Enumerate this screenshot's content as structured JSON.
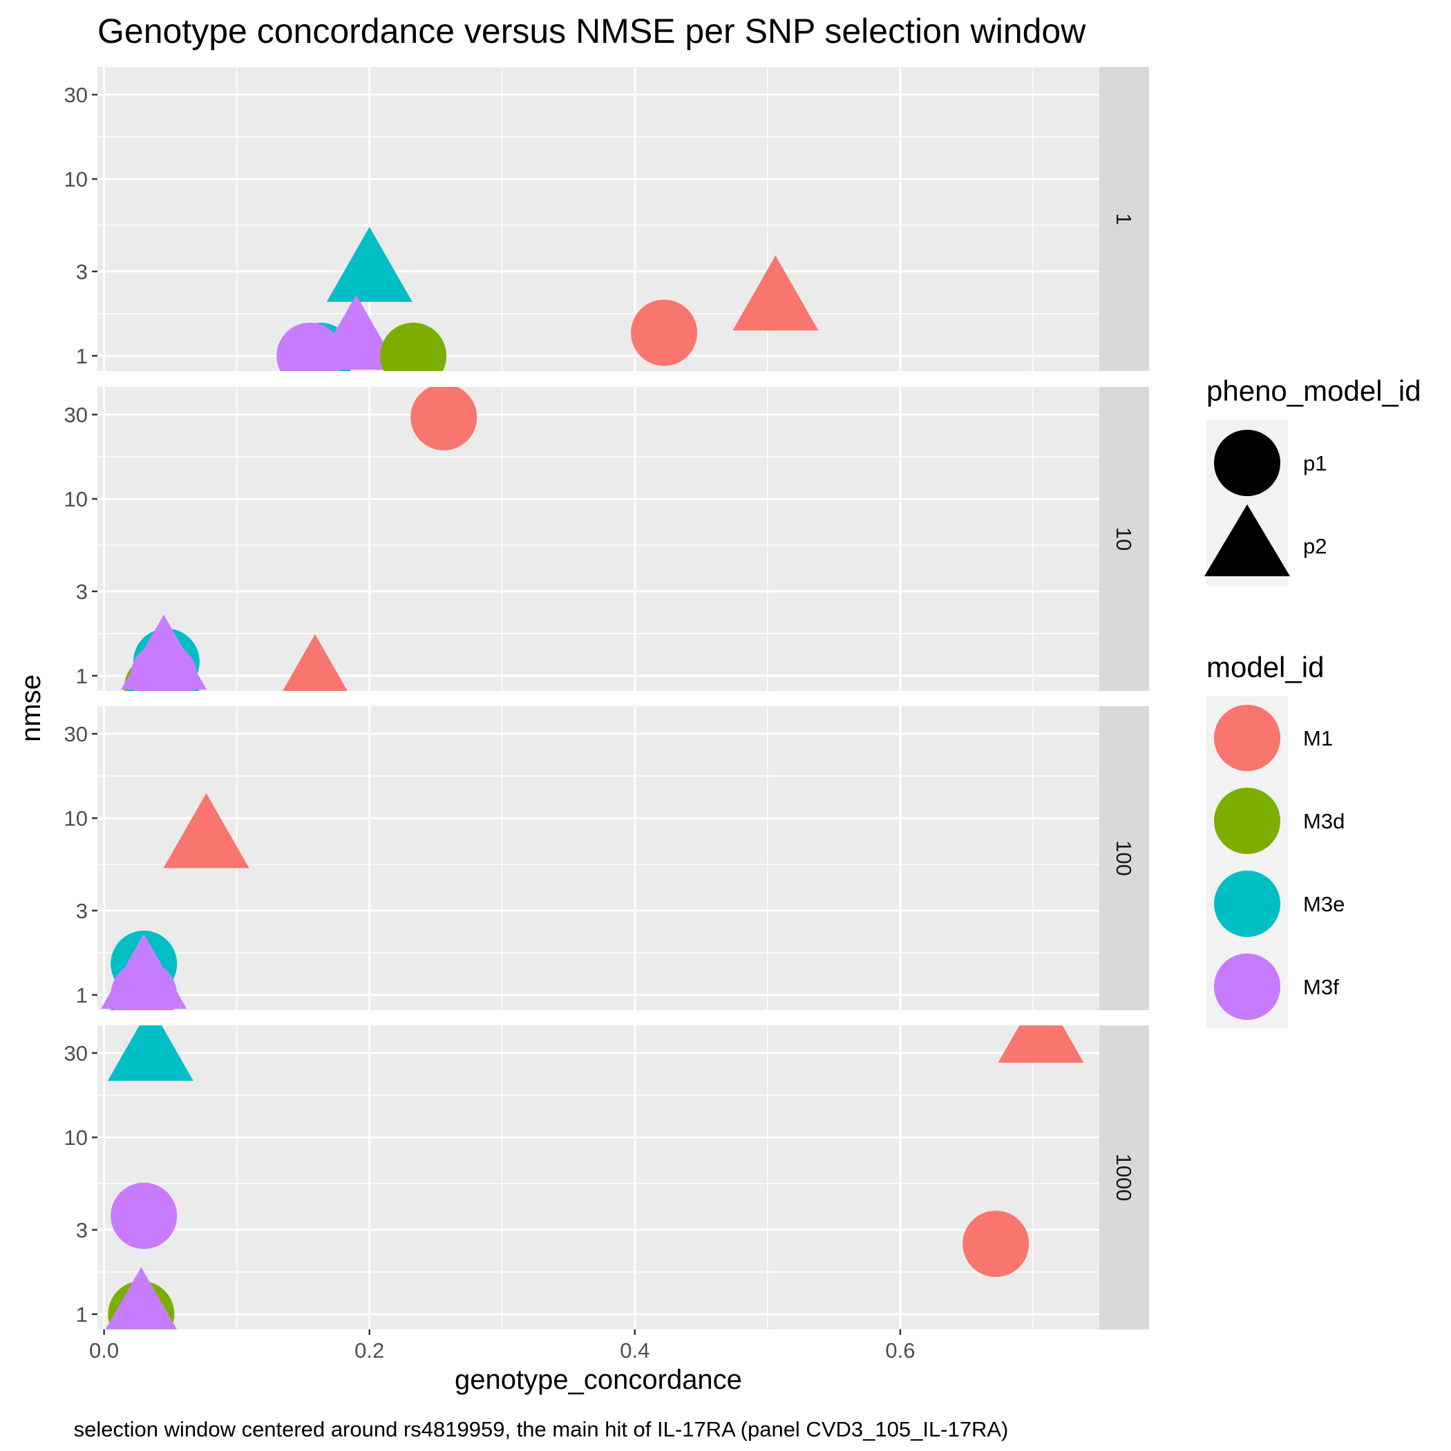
{
  "chart_data": {
    "type": "scatter",
    "title": "Genotype concordance versus NMSE per SNP selection window",
    "caption": "selection window centered around rs4819959, the main hit of IL-17RA (panel CVD3_105_IL-17RA)",
    "xlabel": "genotype_concordance",
    "ylabel": "nmse",
    "x_scale": "linear",
    "y_scale": "log10",
    "xlim": [
      -0.005,
      0.75
    ],
    "ylim": [
      0.82,
      43
    ],
    "x_ticks": [
      0.0,
      0.2,
      0.4,
      0.6
    ],
    "x_tick_labels": [
      "0.0",
      "0.2",
      "0.4",
      "0.6"
    ],
    "y_ticks": [
      1,
      3,
      10,
      30
    ],
    "y_tick_labels": [
      "1",
      "3",
      "10",
      "30"
    ],
    "grid": true,
    "facet_by": "SNP selection window",
    "facet_labels": [
      "1",
      "10",
      "100",
      "1000"
    ],
    "legend_position": "right",
    "legends": {
      "shape": {
        "title": "pheno_model_id",
        "entries": [
          {
            "label": "p1",
            "shape": "circle"
          },
          {
            "label": "p2",
            "shape": "triangle"
          }
        ]
      },
      "color": {
        "title": "model_id",
        "entries": [
          {
            "label": "M1",
            "color": "#F8766D"
          },
          {
            "label": "M3d",
            "color": "#7CAE00"
          },
          {
            "label": "M3e",
            "color": "#00BFC4"
          },
          {
            "label": "M3f",
            "color": "#C77CFF"
          }
        ]
      }
    },
    "points": [
      {
        "facet": "1",
        "model_id": "M3e",
        "pheno_model_id": "p1",
        "x": 0.163,
        "y": 1.0
      },
      {
        "facet": "1",
        "model_id": "M3e",
        "pheno_model_id": "p2",
        "x": 0.2,
        "y": 2.9
      },
      {
        "facet": "1",
        "model_id": "M3f",
        "pheno_model_id": "p1",
        "x": 0.155,
        "y": 1.0
      },
      {
        "facet": "1",
        "model_id": "M3f",
        "pheno_model_id": "p2",
        "x": 0.19,
        "y": 1.2
      },
      {
        "facet": "1",
        "model_id": "M3d",
        "pheno_model_id": "p1",
        "x": 0.233,
        "y": 1.0
      },
      {
        "facet": "1",
        "model_id": "M1",
        "pheno_model_id": "p1",
        "x": 0.422,
        "y": 1.35
      },
      {
        "facet": "1",
        "model_id": "M1",
        "pheno_model_id": "p2",
        "x": 0.506,
        "y": 2.0
      },
      {
        "facet": "10",
        "model_id": "M1",
        "pheno_model_id": "p1",
        "x": 0.256,
        "y": 29
      },
      {
        "facet": "10",
        "model_id": "M1",
        "pheno_model_id": "p2",
        "x": 0.159,
        "y": 0.93
      },
      {
        "facet": "10",
        "model_id": "M3d",
        "pheno_model_id": "p1",
        "x": 0.04,
        "y": 0.85
      },
      {
        "facet": "10",
        "model_id": "M3e",
        "pheno_model_id": "p1",
        "x": 0.047,
        "y": 1.2
      },
      {
        "facet": "10",
        "model_id": "M3e",
        "pheno_model_id": "p2",
        "x": 0.045,
        "y": 1.0
      },
      {
        "facet": "10",
        "model_id": "M3f",
        "pheno_model_id": "p1",
        "x": 0.045,
        "y": 1.0
      },
      {
        "facet": "10",
        "model_id": "M3f",
        "pheno_model_id": "p2",
        "x": 0.045,
        "y": 1.2
      },
      {
        "facet": "100",
        "model_id": "M1",
        "pheno_model_id": "p2",
        "x": 0.077,
        "y": 7.5
      },
      {
        "facet": "100",
        "model_id": "M3e",
        "pheno_model_id": "p1",
        "x": 0.03,
        "y": 1.5
      },
      {
        "facet": "100",
        "model_id": "M3e",
        "pheno_model_id": "p2",
        "x": 0.028,
        "y": 0.9
      },
      {
        "facet": "100",
        "model_id": "M3f",
        "pheno_model_id": "p1",
        "x": 0.03,
        "y": 1.0
      },
      {
        "facet": "100",
        "model_id": "M3f",
        "pheno_model_id": "p2",
        "x": 0.03,
        "y": 1.2
      },
      {
        "facet": "1000",
        "model_id": "M3e",
        "pheno_model_id": "p2",
        "x": 0.035,
        "y": 30
      },
      {
        "facet": "1000",
        "model_id": "M1",
        "pheno_model_id": "p2",
        "x": 0.706,
        "y": 38
      },
      {
        "facet": "1000",
        "model_id": "M3f",
        "pheno_model_id": "p1",
        "x": 0.03,
        "y": 3.6
      },
      {
        "facet": "1000",
        "model_id": "M1",
        "pheno_model_id": "p1",
        "x": 0.672,
        "y": 2.5
      },
      {
        "facet": "1000",
        "model_id": "M3d",
        "pheno_model_id": "p1",
        "x": 0.028,
        "y": 1.0
      },
      {
        "facet": "1000",
        "model_id": "M3f",
        "pheno_model_id": "p2",
        "x": 0.028,
        "y": 1.0
      }
    ]
  }
}
